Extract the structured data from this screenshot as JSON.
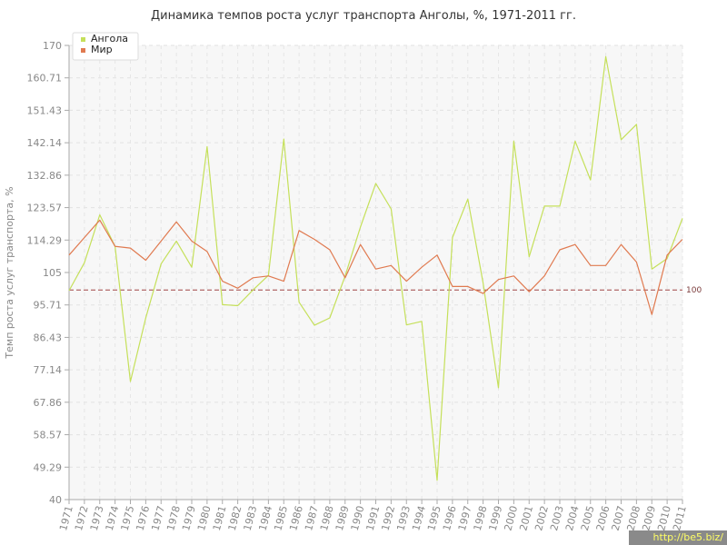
{
  "chart_data": {
    "type": "line",
    "title": "Динамика темпов роста услуг транспорта Анголы, %, 1971-2011 гг.",
    "ylabel": "Темп роста услуг транспорта, %",
    "xlabel": "",
    "ylim": [
      40,
      170
    ],
    "yticks": [
      "40",
      "49.29",
      "58.57",
      "67.86",
      "77.14",
      "86.43",
      "95.71",
      "105",
      "114.29",
      "123.57",
      "132.86",
      "142.14",
      "151.43",
      "160.71",
      "170"
    ],
    "categories": [
      "1971",
      "1972",
      "1973",
      "1974",
      "1975",
      "1976",
      "1977",
      "1978",
      "1979",
      "1980",
      "1981",
      "1982",
      "1983",
      "1984",
      "1985",
      "1986",
      "1987",
      "1988",
      "1989",
      "1990",
      "1991",
      "1992",
      "1993",
      "1994",
      "1995",
      "1996",
      "1997",
      "1998",
      "1999",
      "2000",
      "2001",
      "2002",
      "2003",
      "2004",
      "2005",
      "2006",
      "2007",
      "2008",
      "2009",
      "2010",
      "2011"
    ],
    "series": [
      {
        "name": "Ангола",
        "color": "#c5e05a",
        "values": [
          99.8,
          107.8,
          121.5,
          112.5,
          73.8,
          92.0,
          107.5,
          114.0,
          106.5,
          141.0,
          95.8,
          95.5,
          100.0,
          104.2,
          143.2,
          96.5,
          89.9,
          92.0,
          104.0,
          118.0,
          130.5,
          123.2,
          90.0,
          91.0,
          45.5,
          115.0,
          126.0,
          102.0,
          72.0,
          142.6,
          109.5,
          124.0,
          124.0,
          142.6,
          131.5,
          166.8,
          143.0,
          147.4,
          106.0,
          109.0,
          120.5
        ]
      },
      {
        "name": "Мир",
        "color": "#e07a50",
        "values": [
          110.0,
          115.0,
          120.0,
          112.5,
          112.0,
          108.5,
          114.0,
          119.5,
          114.0,
          111.0,
          102.5,
          100.5,
          103.5,
          104.0,
          102.5,
          117.0,
          114.5,
          111.5,
          103.5,
          113.0,
          106.0,
          107.0,
          102.5,
          106.5,
          110.0,
          101.0,
          101.0,
          99.0,
          103.0,
          104.0,
          99.5,
          104.0,
          111.5,
          113.0,
          107.0,
          107.0,
          113.0,
          108.0,
          93.0,
          110.0,
          114.5
        ]
      }
    ],
    "reference_line": {
      "value": 100,
      "label": "100",
      "color": "#a04545"
    },
    "grid": true,
    "legend_position": "top-left"
  },
  "watermark": "http://be5.biz/"
}
